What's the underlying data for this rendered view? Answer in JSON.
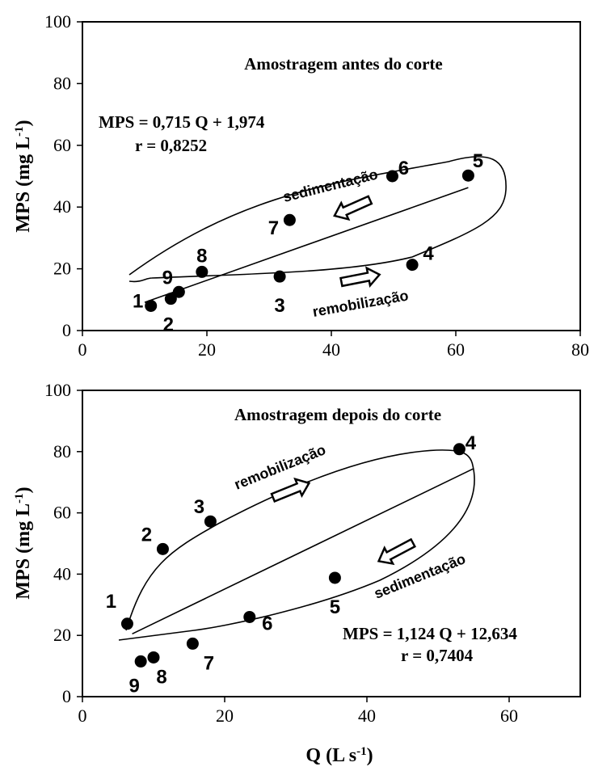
{
  "chart_data": [
    {
      "type": "scatter",
      "title": "Amostragem antes do corte",
      "ylabel": "MPS (mg L-1)",
      "ylabel_parts": {
        "main": "MPS (mg L",
        "sup": "-1",
        "end": ")"
      },
      "xlabel": "",
      "xlim": [
        0,
        80
      ],
      "ylim": [
        0,
        100
      ],
      "xticks": [
        "0",
        "20",
        "40",
        "60",
        "80"
      ],
      "yticks": [
        "0",
        "20",
        "40",
        "60",
        "80",
        "100"
      ],
      "equation": "MPS = 0,715 Q + 1,974",
      "r": "r = 0,8252",
      "regression_x": [
        10,
        62
      ],
      "points": [
        {
          "label": "1",
          "x": 11.0,
          "y": 8.0
        },
        {
          "label": "2",
          "x": 14.2,
          "y": 10.3
        },
        {
          "label": "3",
          "x": 31.7,
          "y": 17.5
        },
        {
          "label": "4",
          "x": 53.0,
          "y": 21.3
        },
        {
          "label": "5",
          "x": 62.0,
          "y": 50.2
        },
        {
          "label": "6",
          "x": 49.8,
          "y": 50.0
        },
        {
          "label": "7",
          "x": 33.3,
          "y": 35.8
        },
        {
          "label": "8",
          "x": 19.2,
          "y": 19.0
        },
        {
          "label": "9",
          "x": 15.5,
          "y": 12.5
        }
      ],
      "annotations": [
        "sedimentação",
        "remobilização"
      ]
    },
    {
      "type": "scatter",
      "title": "Amostragem depois do corte",
      "ylabel": "MPS (mg L-1)",
      "ylabel_parts": {
        "main": "MPS (mg L",
        "sup": "-1",
        "end": ")"
      },
      "xlabel": "Q (L s-1)",
      "xlabel_parts": {
        "main": "Q (L s",
        "sup": "-1",
        "end": ")"
      },
      "xlim": [
        0,
        70
      ],
      "ylim": [
        0,
        100
      ],
      "xticks": [
        "0",
        "20",
        "40",
        "60"
      ],
      "yticks": [
        "0",
        "20",
        "40",
        "60",
        "80",
        "100"
      ],
      "equation": "MPS = 1,124 Q + 12,634",
      "r": "r = 0,7404",
      "regression_x": [
        7,
        55
      ],
      "points": [
        {
          "label": "1",
          "x": 6.3,
          "y": 23.8
        },
        {
          "label": "2",
          "x": 11.3,
          "y": 48.2
        },
        {
          "label": "3",
          "x": 18.0,
          "y": 57.2
        },
        {
          "label": "4",
          "x": 53.0,
          "y": 80.8
        },
        {
          "label": "5",
          "x": 35.5,
          "y": 38.8
        },
        {
          "label": "6",
          "x": 23.5,
          "y": 26.0
        },
        {
          "label": "7",
          "x": 15.5,
          "y": 17.3
        },
        {
          "label": "8",
          "x": 10.0,
          "y": 12.8
        },
        {
          "label": "9",
          "x": 8.2,
          "y": 11.5
        }
      ],
      "annotations": [
        "remobilização",
        "sedimentação"
      ]
    }
  ]
}
